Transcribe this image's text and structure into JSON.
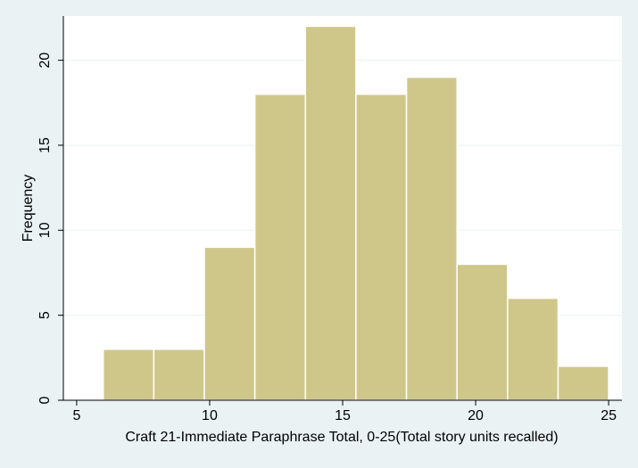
{
  "chart_data": {
    "type": "bar",
    "histogram": true,
    "bins": [
      {
        "start": 6.0,
        "end": 7.9,
        "value": 3
      },
      {
        "start": 7.9,
        "end": 9.8,
        "value": 3
      },
      {
        "start": 9.8,
        "end": 11.7,
        "value": 9
      },
      {
        "start": 11.7,
        "end": 13.6,
        "value": 18
      },
      {
        "start": 13.6,
        "end": 15.5,
        "value": 22
      },
      {
        "start": 15.5,
        "end": 17.4,
        "value": 18
      },
      {
        "start": 17.4,
        "end": 19.3,
        "value": 19
      },
      {
        "start": 19.3,
        "end": 21.2,
        "value": 8
      },
      {
        "start": 21.2,
        "end": 23.1,
        "value": 6
      },
      {
        "start": 23.1,
        "end": 25.0,
        "value": 2
      }
    ],
    "xlabel": "Craft 21-Immediate Paraphrase Total, 0-25(Total story units recalled)",
    "ylabel": "Frequency",
    "xlim": [
      4.5,
      25.5
    ],
    "ylim": [
      0,
      22.6
    ],
    "xticks": [
      "5",
      "10",
      "15",
      "20",
      "25"
    ],
    "yticks": [
      "0",
      "5",
      "10",
      "15",
      "20"
    ],
    "grid": "horizontal",
    "colors": {
      "bar_fill": "#cfc78a",
      "bar_stroke": "#ffffff",
      "plot_background": "#ffffff",
      "page_background": "#eaf2f3",
      "gridline": "#eaf2f3"
    }
  }
}
